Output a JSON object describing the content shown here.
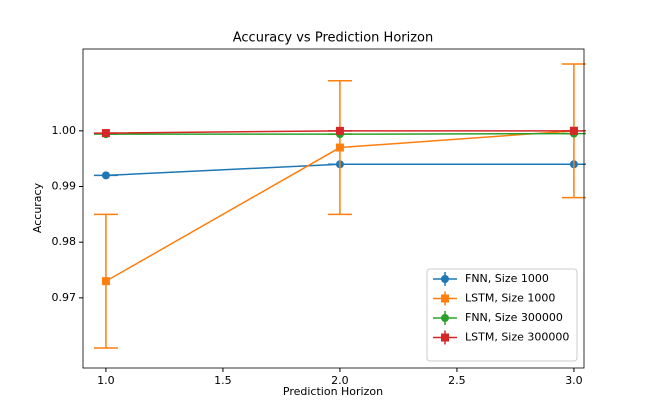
{
  "chart_data": {
    "type": "line",
    "title": "Accuracy vs Prediction Horizon",
    "xlabel": "Prediction Horizon",
    "ylabel": "Accuracy",
    "xlim": [
      0.902,
      3.043
    ],
    "ylim": [
      0.9574,
      1.0147
    ],
    "xticks": [
      {
        "value": 1,
        "label": "1.0"
      },
      1.5,
      {
        "value": 2,
        "label": "2.0"
      },
      2.5,
      {
        "value": 3,
        "label": "3.0"
      }
    ],
    "yticks": [
      0.97,
      0.98,
      0.99,
      {
        "value": 1,
        "label": "1.00"
      }
    ],
    "legend": "lower right",
    "x": [
      1,
      2,
      3
    ],
    "series": [
      {
        "name": "FNN, Size 1000",
        "color": "#1f77b4",
        "marker": "o",
        "values": [
          0.992,
          0.994,
          0.994
        ],
        "errors": [
          0,
          0,
          0
        ]
      },
      {
        "name": "LSTM, Size 1000",
        "color": "#ff7f0e",
        "marker": "s",
        "values": [
          0.973,
          0.997,
          1.0
        ],
        "errors": [
          0.012,
          0.012,
          0.012
        ]
      },
      {
        "name": "FNN, Size 300000",
        "color": "#2ca02c",
        "marker": "o",
        "values": [
          0.9994,
          0.9994,
          0.9995
        ],
        "errors": [
          0,
          0,
          0
        ]
      },
      {
        "name": "LSTM, Size 300000",
        "color": "#d62728",
        "marker": "s",
        "values": [
          0.9996,
          1.0,
          1.0
        ],
        "errors": [
          0,
          0,
          0
        ]
      }
    ]
  }
}
